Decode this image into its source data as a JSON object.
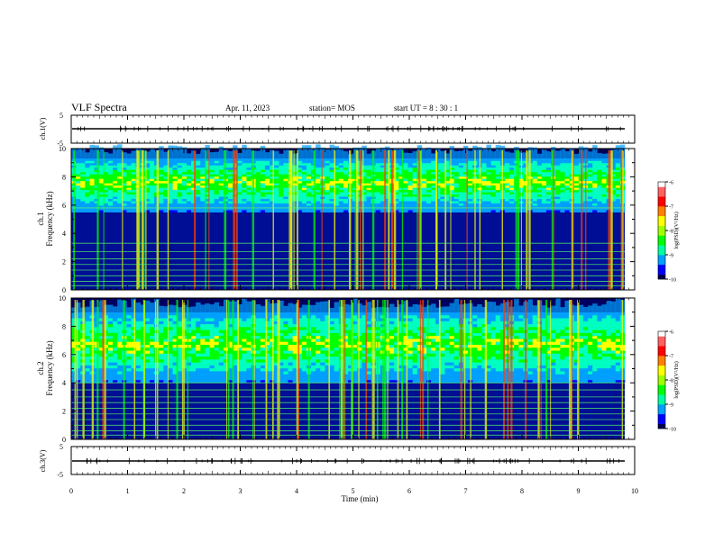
{
  "header": {
    "title": "VLF Spectra",
    "date": "Apr. 11, 2023",
    "station": "station= MOS",
    "start": "start  UT  =   8  : 30 : 1"
  },
  "colors": {
    "scale": [
      "#000050",
      "#0000ff",
      "#00a0ff",
      "#00ffc0",
      "#00ff00",
      "#ffff00",
      "#ff8000",
      "#ff0000",
      "#ffffff"
    ]
  },
  "chart_data": {
    "type": "heatmap",
    "xlabel": "Time  (min)",
    "x_ticks": [
      "0",
      "1",
      "2",
      "3",
      "4",
      "5",
      "6",
      "7",
      "8",
      "9",
      "10"
    ],
    "xlim": [
      0,
      10
    ],
    "panels": [
      {
        "id": "ch1-waveform",
        "ylabel": "ch.1(V)",
        "ylim": [
          -5,
          5
        ],
        "y_ticks": [
          "5",
          "-5"
        ],
        "baseline": 0
      },
      {
        "id": "ch1-spectrogram",
        "ylabel": "ch.1\nFrequency (kHz)",
        "ylabel_line1": "ch.1",
        "ylabel_line2": "Frequency (kHz)",
        "ylim": [
          0,
          10
        ],
        "y_ticks": [
          "0",
          "2",
          "4",
          "6",
          "8",
          "10"
        ],
        "colorbar": {
          "label": "log(PSD)(V²/Hz)",
          "ticks": [
            "-6",
            "-7",
            "-8",
            "-9",
            "-10"
          ],
          "range": [
            -10,
            -6
          ]
        },
        "emission_band_khz": [
          5.5,
          9.3
        ],
        "tone_lines_khz": [
          0.3,
          0.6,
          1.0,
          1.4,
          1.8,
          2.2,
          2.7,
          3.3,
          5.8
        ]
      },
      {
        "id": "ch2-spectrogram",
        "ylabel": "ch.2\nFrequency (kHz)",
        "ylabel_line1": "ch.2",
        "ylabel_line2": "Frequency (kHz)",
        "ylim": [
          0,
          10
        ],
        "y_ticks": [
          "0",
          "2",
          "4",
          "6",
          "8",
          "10"
        ],
        "colorbar": {
          "label": "log(PSD)(V²/Hz)",
          "ticks": [
            "-6",
            "-7",
            "-8",
            "-9",
            "-10"
          ],
          "range": [
            -10,
            -6
          ]
        },
        "emission_band_khz": [
          4.0,
          9.0
        ],
        "tone_lines_khz": [
          0.3,
          0.6,
          1.0,
          1.4,
          1.8,
          2.2,
          2.6,
          3.0,
          3.5,
          4.0
        ]
      },
      {
        "id": "ch3-waveform",
        "ylabel": "ch.3(V)",
        "ylim": [
          -5,
          5
        ],
        "y_ticks": [
          "5",
          "-5"
        ],
        "baseline": 0
      }
    ]
  }
}
